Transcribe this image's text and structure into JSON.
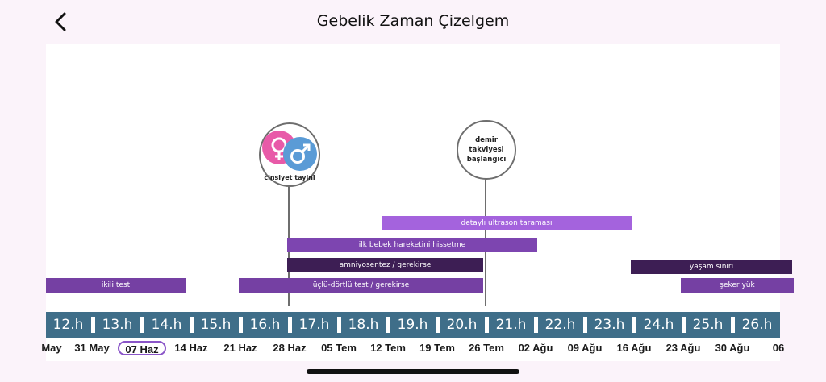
{
  "header": {
    "title": "Gebelik Zaman Çizelgem"
  },
  "milestones": [
    {
      "label": "cinsiyet tayini"
    },
    {
      "label": "demir takviyesi başlangıcı"
    }
  ],
  "bars": [
    {
      "label": "detaylı ultrason taraması",
      "color": "#a463dd"
    },
    {
      "label": "ilk bebek hareketini hissetme",
      "color": "#7d45b0"
    },
    {
      "label": "amniyosentez / gerekirse",
      "color": "#3d1e54"
    },
    {
      "label": "ikili test",
      "color": "#7540a3"
    },
    {
      "label": "üçlü-dörtlü test / gerekirse",
      "color": "#7540a3"
    },
    {
      "label": "yaşam sınırı",
      "color": "#3d1e54"
    },
    {
      "label": "şeker yük",
      "color": "#7540a3"
    }
  ],
  "weeks": [
    "12.h",
    "13.h",
    "14.h",
    "15.h",
    "16.h",
    "17.h",
    "18.h",
    "19.h",
    "20.h",
    "21.h",
    "22.h",
    "23.h",
    "24.h",
    "25.h",
    "26.h"
  ],
  "dates": [
    "May",
    "31 May",
    "07 Haz",
    "14 Haz",
    "21 Haz",
    "28 Haz",
    "05 Tem",
    "12 Tem",
    "19 Tem",
    "26 Tem",
    "02 Ağu",
    "09 Ağu",
    "16 Ağu",
    "23 Ağu",
    "30 Ağu",
    "06"
  ],
  "selected_date": "07 Haz",
  "colors": {
    "week_strip": "#3f6e89",
    "female_symbol": "#e85aa8",
    "male_symbol": "#5a9bd6"
  }
}
